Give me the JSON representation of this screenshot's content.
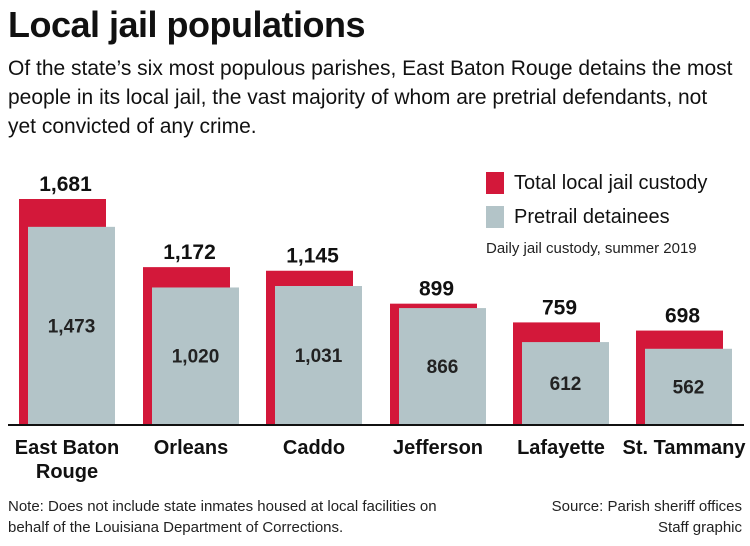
{
  "colors": {
    "total": "#d3183a",
    "pretrial": "#b3c4c8",
    "baseline": "#111111"
  },
  "header": {
    "title": "Local jail populations",
    "subtitle": "Of the state’s six most populous parishes, East Baton Rouge detains the most people in its local jail, the vast majority of whom are pretrial defendants, not yet convicted of any crime."
  },
  "legend": {
    "total_label": "Total local jail custody",
    "pretrial_label": "Pretrail detainees",
    "note": "Daily jail custody, summer 2019"
  },
  "footer": {
    "note": "Note: Does not include state inmates housed at local facilities on behalf of the Louisiana Department of Corrections.",
    "source": "Source: Parish sheriff offices",
    "credit": "Staff graphic"
  },
  "chart_data": {
    "type": "bar",
    "categories": [
      "East Baton Rouge",
      "Orleans",
      "Caddo",
      "Jefferson",
      "Lafayette",
      "St. Tammany"
    ],
    "series": [
      {
        "name": "Total local jail custody",
        "values": [
          1681,
          1172,
          1145,
          899,
          759,
          698
        ],
        "labels": [
          "1,681",
          "1,172",
          "1,145",
          "899",
          "759",
          "698"
        ]
      },
      {
        "name": "Pretrail detainees",
        "values": [
          1473,
          1020,
          1031,
          866,
          612,
          562
        ],
        "labels": [
          "1,473",
          "1,020",
          "1,031",
          "866",
          "612",
          "562"
        ]
      }
    ],
    "ylim": [
      0,
      1681
    ]
  }
}
